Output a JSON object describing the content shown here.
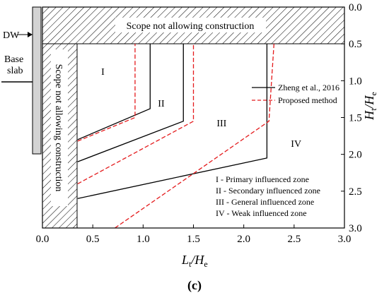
{
  "chart_data": {
    "type": "line",
    "xlabel": "Lt/He",
    "ylabel": "Ht/He",
    "xlim": [
      0.0,
      3.0
    ],
    "ylim": [
      0.0,
      3.0
    ],
    "y_inverted": true,
    "xticks": [
      "0.0",
      "0.5",
      "1.0",
      "1.5",
      "2.0",
      "2.5",
      "3.0"
    ],
    "yticks": [
      "0.0",
      "0.5",
      "1.0",
      "1.5",
      "2.0",
      "2.5",
      "3.0"
    ],
    "legend_placement": "center-right",
    "series": [
      {
        "name": "Zheng et al., 2016",
        "color": "#000000",
        "dash": "solid",
        "segments": [
          [
            [
              0.35,
              1.8
            ],
            [
              1.07,
              1.38
            ],
            [
              1.07,
              0.5
            ]
          ],
          [
            [
              0.35,
              2.1
            ],
            [
              1.4,
              1.55
            ],
            [
              1.4,
              0.5
            ]
          ],
          [
            [
              0.35,
              2.6
            ],
            [
              2.23,
              2.05
            ],
            [
              2.23,
              0.5
            ]
          ]
        ]
      },
      {
        "name": "Proposed method",
        "color": "#e41a1c",
        "dash": "dashed",
        "segments": [
          [
            [
              0.35,
              1.82
            ],
            [
              0.92,
              1.5
            ],
            [
              0.92,
              0.5
            ]
          ],
          [
            [
              0.35,
              2.4
            ],
            [
              1.5,
              1.55
            ],
            [
              1.5,
              0.5
            ]
          ],
          [
            [
              0.72,
              3.0
            ],
            [
              2.25,
              1.55
            ],
            [
              2.3,
              0.5
            ]
          ]
        ]
      }
    ],
    "zones": [
      {
        "label": "I",
        "x": 0.6,
        "y": 0.92
      },
      {
        "label": "II",
        "x": 1.18,
        "y": 1.35
      },
      {
        "label": "III",
        "x": 1.78,
        "y": 1.62
      },
      {
        "label": "IV",
        "x": 2.52,
        "y": 1.9
      }
    ],
    "zone_legend": [
      "I - Primary influenced zone",
      "II - Secondary influenced zone",
      "III - General influenced zone",
      "IV - Weak influenced zone"
    ]
  },
  "annotations": {
    "top_scope": "Scope not allowing construction",
    "side_scope": "Scope not allowing construction",
    "dw": "DW",
    "base_slab_line1": "Base",
    "base_slab_line2": "slab"
  },
  "axis_titles": {
    "x_main": "L",
    "x_sub": "t",
    "x_div": "/H",
    "x_sub2": "e",
    "y_main": "H",
    "y_sub": "t",
    "y_div": "/H",
    "y_sub2": "e"
  },
  "panel_label": "(c)"
}
